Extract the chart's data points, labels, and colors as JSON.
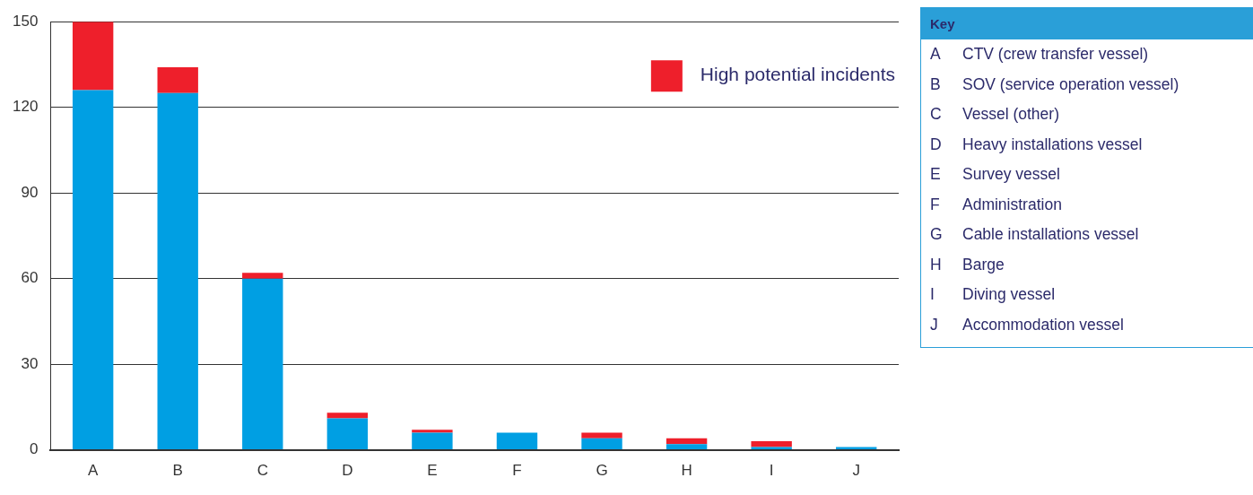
{
  "chart_data": [
    {
      "type": "bar",
      "stacked": true,
      "categories": [
        "A",
        "B",
        "C",
        "D",
        "E",
        "F",
        "G",
        "H",
        "I",
        "J"
      ],
      "series": [
        {
          "color": "#009fe3",
          "values": [
            126,
            125,
            60,
            11,
            6,
            6,
            4,
            2,
            1,
            1
          ]
        },
        {
          "name": "High potential incidents",
          "color": "#ee1f2b",
          "values": [
            24,
            9,
            2,
            2,
            1,
            0,
            2,
            2,
            2,
            0
          ]
        }
      ],
      "ylim": [
        0,
        150
      ],
      "yticks": [
        0,
        30,
        60,
        90,
        120,
        150
      ],
      "grid": "y",
      "legend": "top right"
    },
    {
      "type": "other",
      "title": "Key",
      "annotations": [
        "A CTV (crew transfer vessel)",
        "B SOV (service operation vessel)",
        "C Vessel (other)",
        "D Heavy installations vessel",
        "E Survey vessel",
        "F Administration",
        "G Cable installations vessel",
        "H Barge",
        "I Diving vessel",
        "J Accommodation vessel"
      ]
    }
  ]
}
